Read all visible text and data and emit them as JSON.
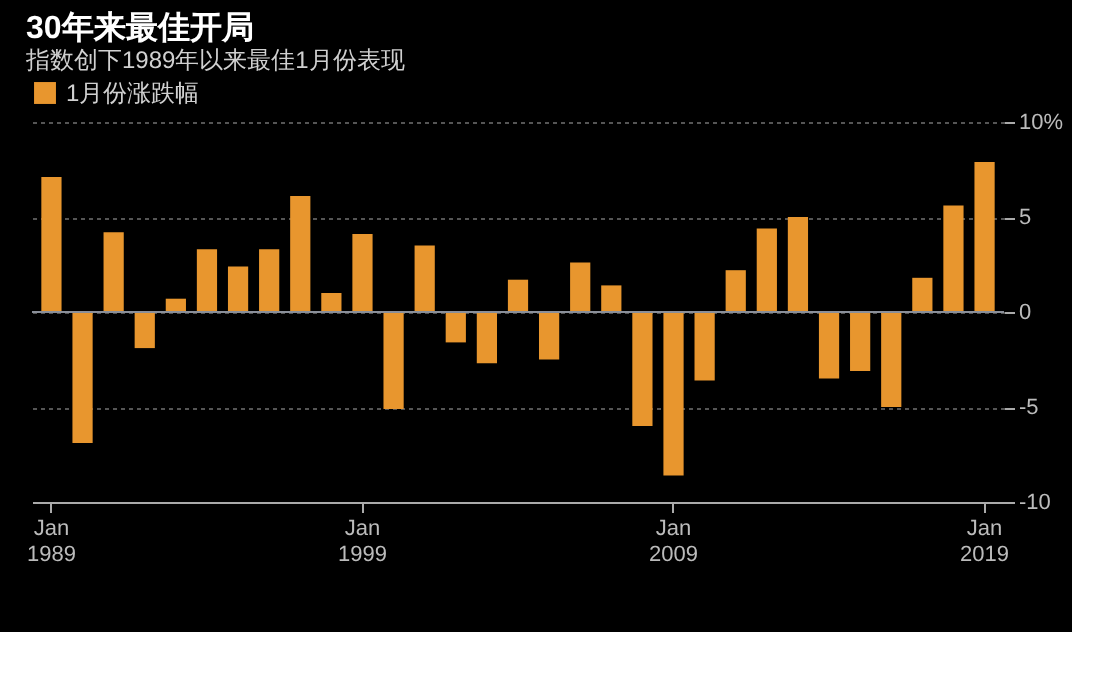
{
  "chart_data": {
    "type": "bar",
    "title": "30年来最佳开局",
    "subtitle": "指数创下1989年以来最佳1月份表现",
    "categories": [
      "Jan 1989",
      null,
      null,
      null,
      null,
      null,
      null,
      null,
      null,
      null,
      "Jan 1999",
      null,
      null,
      null,
      null,
      null,
      null,
      null,
      null,
      null,
      "Jan 2009",
      null,
      null,
      null,
      null,
      null,
      null,
      null,
      null,
      null,
      "Jan 2019"
    ],
    "series": [
      {
        "name": "1月份涨跌幅",
        "color": "#e8962e",
        "values": [
          7.1,
          -6.9,
          4.2,
          -1.9,
          0.7,
          3.3,
          2.4,
          3.3,
          6.1,
          1.0,
          4.1,
          -5.1,
          3.5,
          -1.6,
          -2.7,
          1.7,
          -2.5,
          2.6,
          1.4,
          -6.0,
          -8.6,
          -3.6,
          2.2,
          4.4,
          5.0,
          -3.5,
          -3.1,
          -5.0,
          1.8,
          5.6,
          7.9
        ]
      }
    ],
    "ylim": [
      -10,
      10
    ],
    "yticks": [
      {
        "value": 10,
        "label": "10%"
      },
      5,
      0,
      -5,
      -10
    ],
    "ref_lines": [
      {
        "axis": "y",
        "value": 0,
        "color": "#8a8f99"
      }
    ],
    "grid": "y",
    "legend": "top left"
  }
}
